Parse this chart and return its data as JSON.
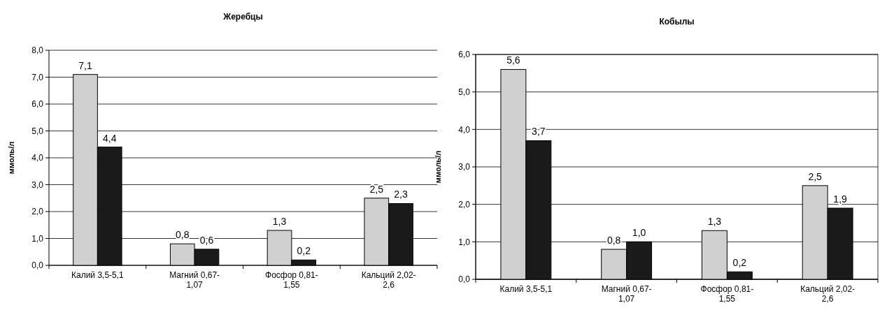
{
  "chart_data": [
    {
      "type": "bar",
      "title": "Жеребцы",
      "ylabel": "ммоль/л",
      "categories": [
        "Калий 3,5-5,1",
        "Магний 0,67-1,07",
        "Фосфор 0,81-1,55",
        "Кальций 2,02-2,6"
      ],
      "series": [
        {
          "color": "#d0d0d0",
          "values": [
            7.1,
            0.8,
            1.3,
            2.5
          ],
          "value_labels": [
            "7,1",
            "0,8",
            "1,3",
            "2,5"
          ]
        },
        {
          "color": "#1a1a1a",
          "values": [
            4.4,
            0.6,
            0.2,
            2.3
          ],
          "value_labels": [
            "4,4",
            "0,6",
            "0,2",
            "2,3"
          ]
        }
      ],
      "ylim": [
        0,
        8
      ],
      "yticks": [
        {
          "value": 0,
          "label": "0,0"
        },
        {
          "value": 1,
          "label": "1,0"
        },
        {
          "value": 2,
          "label": "2,0"
        },
        {
          "value": 3,
          "label": "3,0"
        },
        {
          "value": 4,
          "label": "4,0"
        },
        {
          "value": 5,
          "label": "5,0"
        },
        {
          "value": 6,
          "label": "6,0"
        },
        {
          "value": 7,
          "label": "7,0"
        },
        {
          "value": 8,
          "label": "8,0"
        }
      ],
      "grid": "y"
    },
    {
      "type": "bar",
      "title": "Кобылы",
      "ylabel": "ммоль/л",
      "categories": [
        "Калий 3,5-5,1",
        "Магний 0,67-1,07",
        "Фосфор 0,81-1,55",
        "Кальций 2,02-2,6"
      ],
      "series": [
        {
          "color": "#d0d0d0",
          "values": [
            5.6,
            0.8,
            1.3,
            2.5
          ],
          "value_labels": [
            "5,6",
            "0,8",
            "1,3",
            "2,5"
          ]
        },
        {
          "color": "#1a1a1a",
          "values": [
            3.7,
            1.0,
            0.2,
            1.9
          ],
          "value_labels": [
            "3,7",
            "1,0",
            "0,2",
            "1,9"
          ]
        }
      ],
      "ylim": [
        0,
        6
      ],
      "yticks": [
        {
          "value": 0,
          "label": "0,0"
        },
        {
          "value": 1,
          "label": "1,0"
        },
        {
          "value": 2,
          "label": "2,0"
        },
        {
          "value": 3,
          "label": "3,0"
        },
        {
          "value": 4,
          "label": "4,0"
        },
        {
          "value": 5,
          "label": "5,0"
        },
        {
          "value": 6,
          "label": "6,0"
        }
      ],
      "grid": "y"
    }
  ]
}
